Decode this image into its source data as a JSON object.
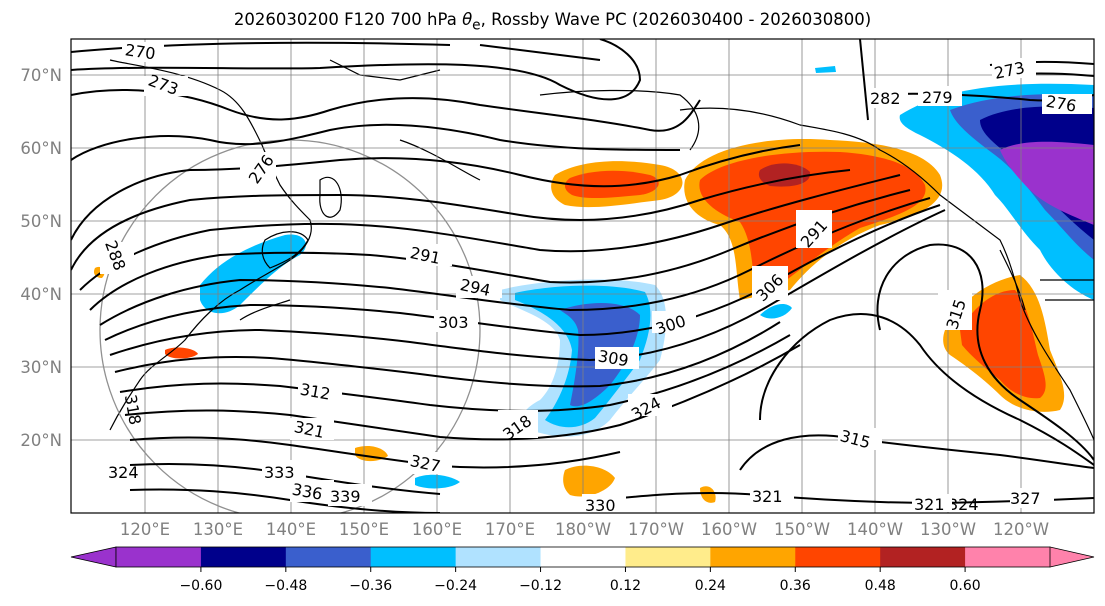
{
  "title": {
    "prefix": "2026030200 F120 700 hPa ",
    "theta": "θ",
    "sub": "e",
    "suffix": ", Rossby Wave PC (2026030400 - 2026030800)"
  },
  "axes": {
    "lat_labels": [
      "70°N",
      "60°N",
      "50°N",
      "40°N",
      "30°N",
      "20°N"
    ],
    "lon_labels": [
      "120°E",
      "130°E",
      "140°E",
      "150°E",
      "160°E",
      "170°E",
      "180°W",
      "170°W",
      "160°W",
      "150°W",
      "140°W",
      "130°W",
      "120°W"
    ]
  },
  "contour_labels": [
    "270",
    "273",
    "276",
    "288",
    "291",
    "294",
    "303",
    "300",
    "309",
    "312",
    "318",
    "321",
    "324",
    "327",
    "330",
    "333",
    "336",
    "339",
    "321",
    "315",
    "315",
    "282",
    "279",
    "276",
    "273",
    "291",
    "306",
    "324",
    "327",
    "321",
    "318",
    "324"
  ],
  "colorbar": {
    "ticks": [
      "−0.60",
      "−0.48",
      "−0.36",
      "−0.24",
      "−0.12",
      "0.12",
      "0.24",
      "0.36",
      "0.48",
      "0.60"
    ],
    "colors": [
      "#9a32cd",
      "#00008b",
      "#3a5fcd",
      "#00bfff",
      "#b0e2ff",
      "#ffffff",
      "#ffec8b",
      "#ffa500",
      "#ff4500",
      "#b22222",
      "#ff82ab"
    ],
    "under_color": "#9a32cd",
    "over_color": "#ff82ab"
  }
}
